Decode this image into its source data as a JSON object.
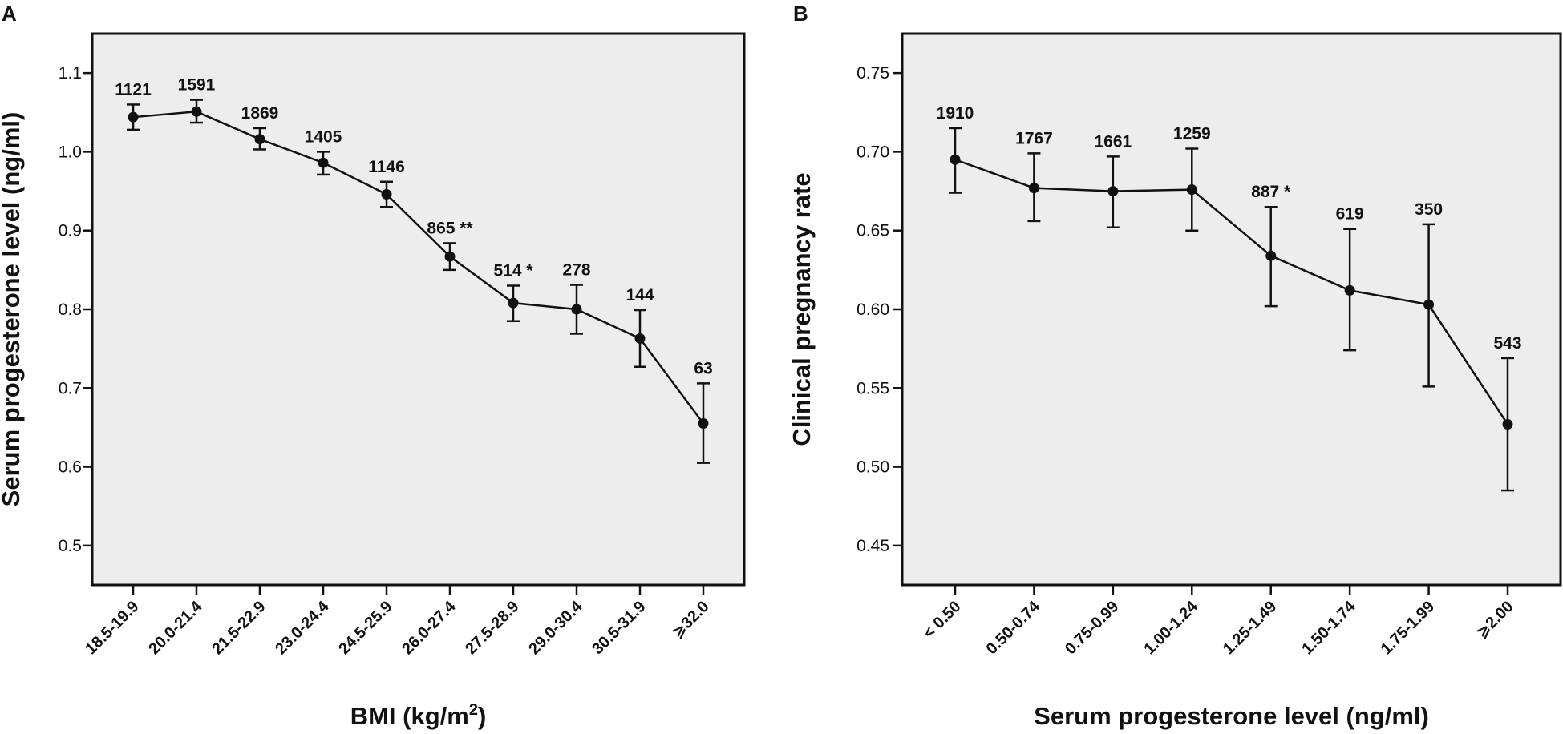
{
  "chart_data": [
    {
      "panel": "A",
      "type": "line",
      "title": "",
      "xlabel": "BMI (kg/m",
      "xlabel_sup": "2",
      "xlabel_end": ")",
      "ylabel": "Serum progesterone level (ng/ml)",
      "ylim": [
        0.45,
        1.15
      ],
      "yticks": [
        0.5,
        0.6,
        0.7,
        0.8,
        0.9,
        1.0,
        1.1
      ],
      "ytick_labels": [
        "0.5",
        "0.6",
        "0.7",
        "0.8",
        "0.9",
        "1.0",
        "1.1"
      ],
      "categories": [
        "18.5-19.9",
        "20.0-21.4",
        "21.5-22.9",
        "23.0-24.4",
        "24.5-25.9",
        "26.0-27.4",
        "27.5-28.9",
        "29.0-30.4",
        "30.5-31.9",
        "⩾32.0"
      ],
      "values": [
        1.044,
        1.051,
        1.016,
        0.986,
        0.946,
        0.867,
        0.808,
        0.8,
        0.763,
        0.655
      ],
      "err_low": [
        1.028,
        1.037,
        1.003,
        0.971,
        0.93,
        0.85,
        0.785,
        0.769,
        0.727,
        0.605
      ],
      "err_high": [
        1.06,
        1.066,
        1.03,
        1.0,
        0.962,
        0.884,
        0.83,
        0.831,
        0.799,
        0.706
      ],
      "n_labels": [
        "1121",
        "1591",
        "1869",
        "1405",
        "1146",
        "865 **",
        "514 *",
        "278",
        "144",
        "63"
      ]
    },
    {
      "panel": "B",
      "type": "line",
      "title": "",
      "xlabel": "Serum progesterone level (ng/ml)",
      "ylabel": "Clinical pregnancy rate",
      "ylim": [
        0.425,
        0.775
      ],
      "yticks": [
        0.45,
        0.5,
        0.55,
        0.6,
        0.65,
        0.7,
        0.75
      ],
      "ytick_labels": [
        "0.45",
        "0.50",
        "0.55",
        "0.60",
        "0.65",
        "0.70",
        "0.75"
      ],
      "categories": [
        "< 0.50",
        "0.50-0.74",
        "0.75-0.99",
        "1.00-1.24",
        "1.25-1.49",
        "1.50-1.74",
        "1.75-1.99",
        "⩾2.00"
      ],
      "values": [
        0.695,
        0.677,
        0.675,
        0.676,
        0.634,
        0.612,
        0.603,
        0.527
      ],
      "err_low": [
        0.674,
        0.656,
        0.652,
        0.65,
        0.602,
        0.574,
        0.551,
        0.485
      ],
      "err_high": [
        0.715,
        0.699,
        0.697,
        0.702,
        0.665,
        0.651,
        0.654,
        0.569
      ],
      "n_labels": [
        "1910",
        "1767",
        "1661",
        "1259",
        "887 *",
        "619",
        "350",
        "543"
      ]
    }
  ]
}
